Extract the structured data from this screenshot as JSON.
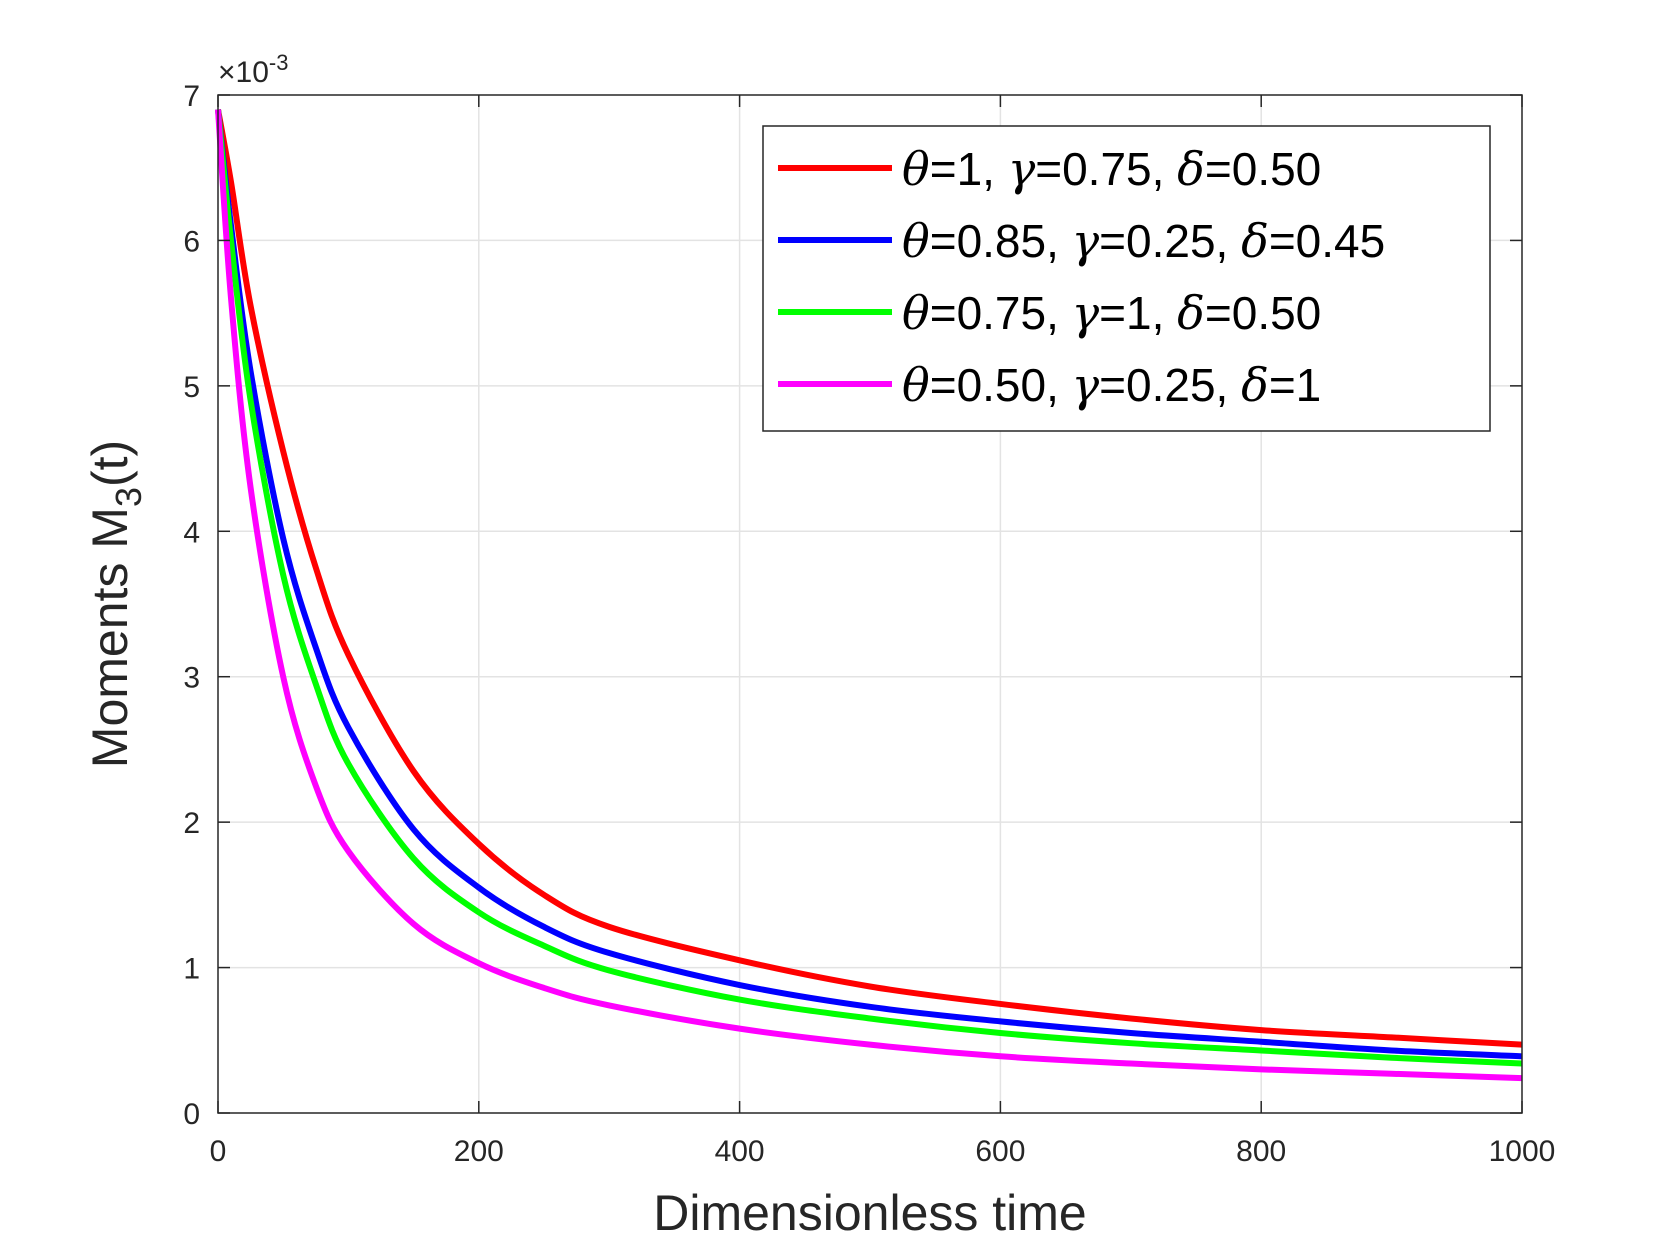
{
  "chart_data": {
    "type": "line",
    "title": "",
    "xlabel": "Dimensionless time",
    "ylabel_main": "Moments M",
    "ylabel_sub": "3",
    "ylabel_tail": "(t)",
    "xlim": [
      0,
      1000
    ],
    "ylim": [
      0,
      7
    ],
    "x_ticks": [
      "0",
      "200",
      "400",
      "600",
      "800",
      "1000"
    ],
    "y_ticks": [
      "0",
      "1",
      "2",
      "3",
      "4",
      "5",
      "6",
      "7"
    ],
    "y_exponent_base": "×10",
    "y_exponent_power": "-3",
    "grid": true,
    "legend_position": "top-right",
    "series": [
      {
        "name": "θ=1, γ=0.75, δ=0.50",
        "color": "#ff0000",
        "legend": {
          "theta": "=1, ",
          "gamma": "=0.75, ",
          "delta": "=0.50"
        },
        "x": [
          0,
          10,
          25,
          50,
          75,
          100,
          150,
          200,
          250,
          300,
          400,
          500,
          600,
          700,
          800,
          900,
          1000
        ],
        "y": [
          6.9,
          6.4,
          5.55,
          4.55,
          3.75,
          3.15,
          2.35,
          1.85,
          1.5,
          1.28,
          1.05,
          0.87,
          0.75,
          0.65,
          0.57,
          0.52,
          0.47
        ]
      },
      {
        "name": "θ=0.85, γ=0.25, δ=0.45",
        "color": "#0000ff",
        "legend": {
          "theta": "=0.85, ",
          "gamma": "=0.25, ",
          "delta": "=0.45"
        },
        "x": [
          0,
          10,
          25,
          50,
          75,
          100,
          150,
          200,
          250,
          300,
          400,
          500,
          600,
          700,
          800,
          900,
          1000
        ],
        "y": [
          6.9,
          6.1,
          5.1,
          3.95,
          3.2,
          2.65,
          1.95,
          1.55,
          1.28,
          1.1,
          0.88,
          0.73,
          0.63,
          0.55,
          0.49,
          0.43,
          0.39
        ]
      },
      {
        "name": "θ=0.75, γ=1, δ=0.50",
        "color": "#00ff00",
        "legend": {
          "theta": "=0.75, ",
          "gamma": "=1, ",
          "delta": "=0.50"
        },
        "x": [
          0,
          10,
          25,
          50,
          75,
          100,
          150,
          200,
          250,
          300,
          400,
          500,
          600,
          700,
          800,
          900,
          1000
        ],
        "y": [
          6.9,
          6.0,
          4.9,
          3.7,
          2.95,
          2.4,
          1.75,
          1.38,
          1.15,
          0.98,
          0.78,
          0.65,
          0.55,
          0.48,
          0.43,
          0.38,
          0.34
        ]
      },
      {
        "name": "θ=0.50, γ=0.25, δ=1",
        "color": "#ff00ff",
        "legend": {
          "theta": "=0.50, ",
          "gamma": "=0.25, ",
          "delta": "=1"
        },
        "x": [
          0,
          10,
          25,
          50,
          75,
          100,
          150,
          200,
          250,
          300,
          400,
          500,
          600,
          700,
          800,
          900,
          1000
        ],
        "y": [
          6.9,
          5.6,
          4.3,
          3.0,
          2.25,
          1.8,
          1.3,
          1.03,
          0.86,
          0.74,
          0.58,
          0.47,
          0.39,
          0.34,
          0.3,
          0.27,
          0.24
        ]
      }
    ]
  }
}
